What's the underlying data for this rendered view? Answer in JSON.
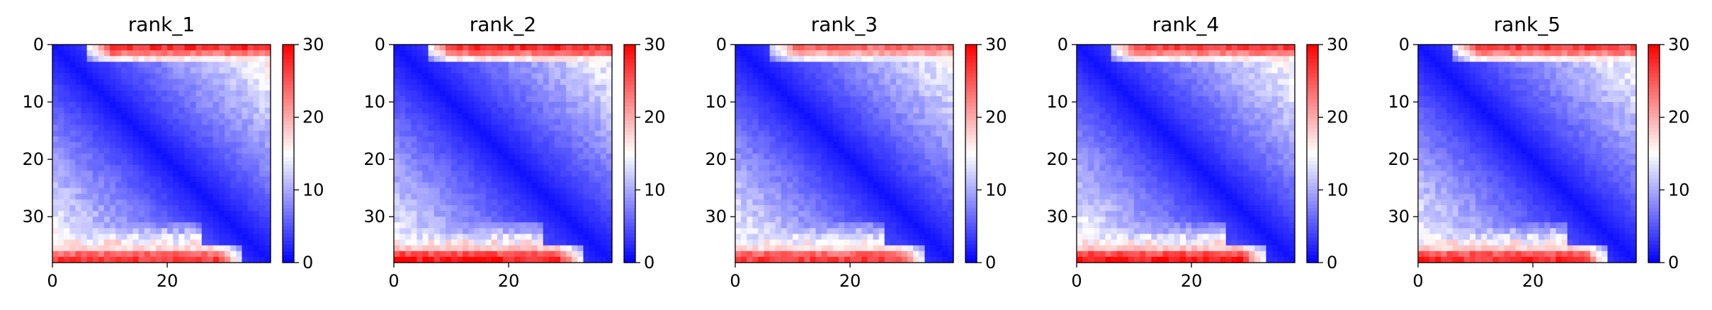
{
  "chart_data": [
    {
      "type": "heatmap",
      "title": "rank_1",
      "grid_size": 38,
      "x_ticks": [
        0,
        20
      ],
      "y_ticks": [
        0,
        10,
        20,
        30
      ],
      "xlim": [
        0,
        38
      ],
      "ylim": [
        38,
        0
      ],
      "colorbar": {
        "min": 0,
        "max": 30,
        "ticks": [
          0,
          10,
          20,
          30
        ],
        "colormap": "bwr"
      },
      "pattern": {
        "diagonal_value": 1,
        "off_diagonal_slope": 0.42,
        "top_band_value": 28,
        "bottom_band_value": 27,
        "noise_seed": 11
      },
      "grid": false
    },
    {
      "type": "heatmap",
      "title": "rank_2",
      "grid_size": 38,
      "x_ticks": [
        0,
        20
      ],
      "y_ticks": [
        0,
        10,
        20,
        30
      ],
      "xlim": [
        0,
        38
      ],
      "ylim": [
        38,
        0
      ],
      "colorbar": {
        "min": 0,
        "max": 30,
        "ticks": [
          0,
          10,
          20,
          30
        ],
        "colormap": "bwr"
      },
      "pattern": {
        "diagonal_value": 1,
        "off_diagonal_slope": 0.4,
        "top_band_value": 28,
        "bottom_band_value": 29,
        "noise_seed": 23
      },
      "grid": false
    },
    {
      "type": "heatmap",
      "title": "rank_3",
      "grid_size": 38,
      "x_ticks": [
        0,
        20
      ],
      "y_ticks": [
        0,
        10,
        20,
        30
      ],
      "xlim": [
        0,
        38
      ],
      "ylim": [
        38,
        0
      ],
      "colorbar": {
        "min": 0,
        "max": 30,
        "ticks": [
          0,
          10,
          20,
          30
        ],
        "colormap": "bwr"
      },
      "pattern": {
        "diagonal_value": 1,
        "off_diagonal_slope": 0.41,
        "top_band_value": 24,
        "bottom_band_value": 27,
        "noise_seed": 37
      },
      "grid": false
    },
    {
      "type": "heatmap",
      "title": "rank_4",
      "grid_size": 38,
      "x_ticks": [
        0,
        20
      ],
      "y_ticks": [
        0,
        10,
        20,
        30
      ],
      "xlim": [
        0,
        38
      ],
      "ylim": [
        38,
        0
      ],
      "colorbar": {
        "min": 0,
        "max": 30,
        "ticks": [
          0,
          10,
          20,
          30
        ],
        "colormap": "bwr"
      },
      "pattern": {
        "diagonal_value": 1,
        "off_diagonal_slope": 0.42,
        "top_band_value": 27,
        "bottom_band_value": 29,
        "noise_seed": 53
      },
      "grid": false
    },
    {
      "type": "heatmap",
      "title": "rank_5",
      "grid_size": 38,
      "x_ticks": [
        0,
        20
      ],
      "y_ticks": [
        0,
        10,
        20,
        30
      ],
      "xlim": [
        0,
        38
      ],
      "ylim": [
        38,
        0
      ],
      "colorbar": {
        "min": 0,
        "max": 30,
        "ticks": [
          0,
          10,
          20,
          30
        ],
        "colormap": "bwr"
      },
      "pattern": {
        "diagonal_value": 1,
        "off_diagonal_slope": 0.41,
        "top_band_value": 27,
        "bottom_band_value": 28,
        "noise_seed": 71
      },
      "grid": false
    }
  ]
}
